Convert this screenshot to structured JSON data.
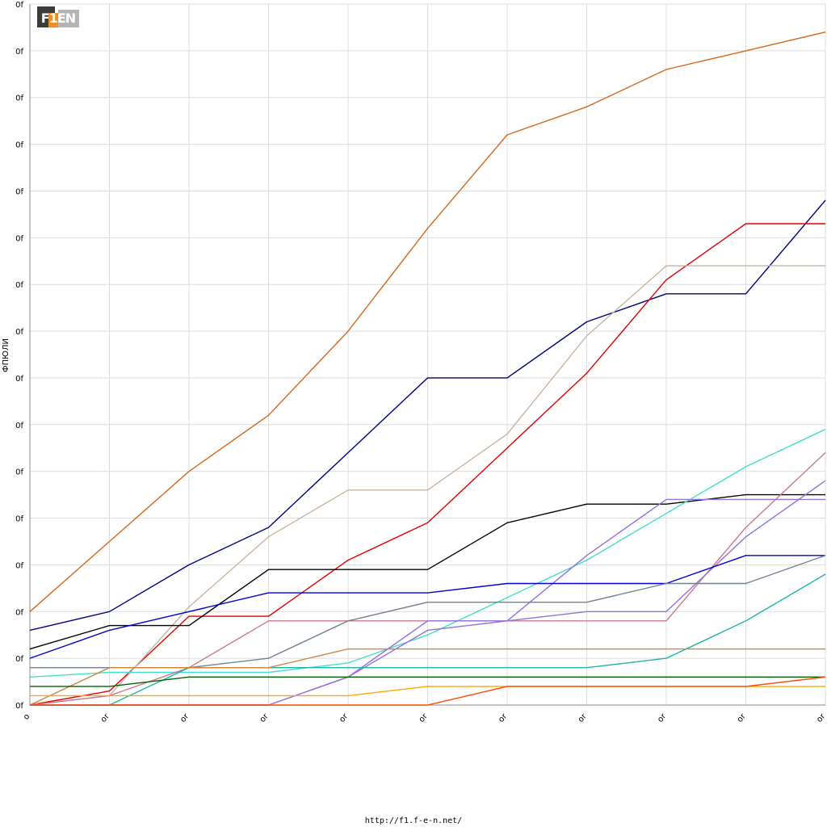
{
  "logo": {
    "text": "F1EN"
  },
  "footer": {
    "url": "http://f1.f-e-n.net/"
  },
  "chart_data": {
    "type": "line",
    "title": "",
    "xlabel": "",
    "ylabel": "ФПЮЛИ",
    "x": [
      0,
      1,
      2,
      3,
      4,
      5,
      6,
      7,
      8,
      9,
      10
    ],
    "x_tick_labels": [
      "o",
      "or",
      "or",
      "or",
      "or",
      "or",
      "or",
      "or",
      "or",
      "or",
      "or"
    ],
    "y_tick_labels": [
      "0f",
      "0f",
      "0f",
      "0f",
      "0f",
      "0f",
      "0f",
      "0f",
      "0f",
      "0f",
      "0f",
      "0f",
      "0f",
      "0f",
      "0f",
      "0f"
    ],
    "ylim": [
      0,
      150
    ],
    "grid": true,
    "legend": "none",
    "series": [
      {
        "color": "#d2691e",
        "values": [
          20,
          35,
          50,
          62,
          80,
          102,
          122,
          128,
          136,
          140,
          144
        ]
      },
      {
        "color": "#000080",
        "values": [
          16,
          20,
          30,
          38,
          54,
          70,
          70,
          82,
          88,
          88,
          108
        ]
      },
      {
        "color": "#e00000",
        "values": [
          0,
          3,
          19,
          19,
          31,
          39,
          55,
          71,
          91,
          103,
          103
        ]
      },
      {
        "color": "#c8b4a0",
        "values": [
          0,
          2,
          21,
          36,
          46,
          46,
          58,
          79,
          94,
          94,
          94
        ]
      },
      {
        "color": "#000000",
        "values": [
          12,
          17,
          17,
          29,
          29,
          29,
          39,
          43,
          43,
          45,
          45
        ]
      },
      {
        "color": "#40e0c8",
        "values": [
          6,
          7,
          7,
          7,
          9,
          15,
          23,
          31,
          41,
          51,
          59
        ]
      },
      {
        "color": "#c87890",
        "values": [
          0,
          2,
          8,
          18,
          18,
          18,
          18,
          18,
          18,
          38,
          54
        ]
      },
      {
        "color": "#9370db",
        "values": [
          0,
          0,
          0,
          0,
          6,
          16,
          18,
          32,
          44,
          44,
          44
        ]
      },
      {
        "color": "#9370db",
        "values": [
          0,
          0,
          0,
          0,
          6,
          18,
          18,
          20,
          20,
          36,
          48
        ]
      },
      {
        "color": "#0000cd",
        "values": [
          10,
          16,
          20,
          24,
          24,
          24,
          26,
          26,
          26,
          32,
          32
        ]
      },
      {
        "color": "#708090",
        "values": [
          8,
          8,
          8,
          10,
          18,
          22,
          22,
          22,
          26,
          26,
          32
        ]
      },
      {
        "color": "#20b2aa",
        "values": [
          0,
          0,
          8,
          8,
          8,
          8,
          8,
          8,
          10,
          18,
          28
        ]
      },
      {
        "color": "#cd853f",
        "values": [
          0,
          8,
          8,
          8,
          12,
          12,
          12,
          12,
          12,
          12,
          12
        ]
      },
      {
        "color": "#006400",
        "values": [
          4,
          4,
          6,
          6,
          6,
          6,
          6,
          6,
          6,
          6,
          6
        ]
      },
      {
        "color": "#ffa500",
        "values": [
          2,
          2,
          2,
          2,
          2,
          4,
          4,
          4,
          4,
          4,
          4
        ]
      },
      {
        "color": "#ff4500",
        "values": [
          0,
          0,
          0,
          0,
          0,
          0,
          4,
          4,
          4,
          4,
          6
        ]
      }
    ]
  }
}
